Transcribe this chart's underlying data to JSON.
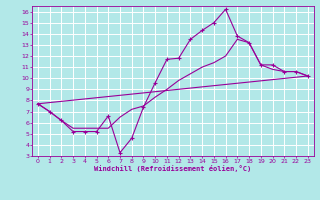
{
  "xlabel": "Windchill (Refroidissement éolien,°C)",
  "bg_color": "#b2e8e8",
  "line_color": "#990099",
  "grid_color": "#ffffff",
  "xlim": [
    -0.5,
    23.5
  ],
  "ylim": [
    3,
    16.5
  ],
  "xticks": [
    0,
    1,
    2,
    3,
    4,
    5,
    6,
    7,
    8,
    9,
    10,
    11,
    12,
    13,
    14,
    15,
    16,
    17,
    18,
    19,
    20,
    21,
    22,
    23
  ],
  "yticks": [
    3,
    4,
    5,
    6,
    7,
    8,
    9,
    10,
    11,
    12,
    13,
    14,
    15,
    16
  ],
  "line1_x": [
    0,
    1,
    2,
    3,
    4,
    5,
    6,
    7,
    8,
    9,
    10,
    11,
    12,
    13,
    14,
    15,
    16,
    17,
    18,
    19,
    20,
    21,
    22,
    23
  ],
  "line1_y": [
    7.7,
    7.0,
    6.2,
    5.2,
    5.2,
    5.2,
    6.6,
    3.3,
    4.6,
    7.4,
    9.6,
    11.7,
    11.8,
    13.5,
    14.3,
    15.0,
    16.2,
    13.8,
    13.2,
    11.2,
    11.2,
    10.6,
    10.6,
    10.2
  ],
  "line2_x": [
    0,
    1,
    2,
    3,
    4,
    5,
    6,
    7,
    8,
    9,
    10,
    11,
    12,
    13,
    14,
    15,
    16,
    17,
    18,
    19,
    20,
    21,
    22,
    23
  ],
  "line2_y": [
    7.7,
    7.0,
    6.2,
    5.5,
    5.5,
    5.5,
    5.5,
    6.5,
    7.2,
    7.5,
    8.3,
    9.0,
    9.8,
    10.4,
    11.0,
    11.4,
    12.0,
    13.5,
    13.2,
    11.2,
    10.8,
    10.6,
    10.6,
    10.2
  ],
  "line3_x": [
    0,
    23
  ],
  "line3_y": [
    7.7,
    10.2
  ]
}
